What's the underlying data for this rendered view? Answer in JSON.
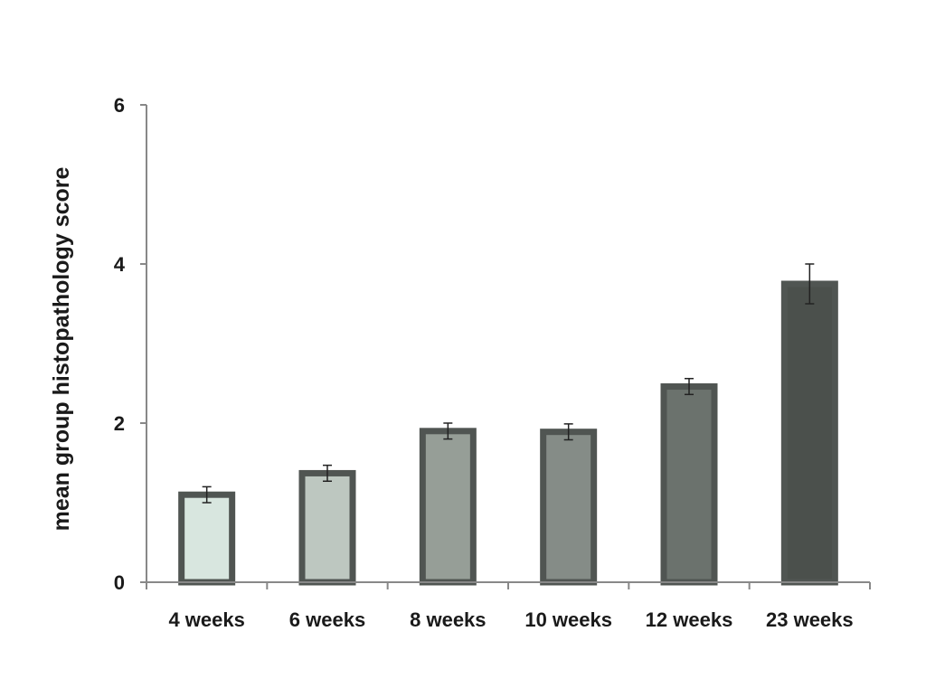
{
  "chart_data": {
    "type": "bar",
    "categories": [
      "4 weeks",
      "6 weeks",
      "8 weeks",
      "10 weeks",
      "12 weeks",
      "23 weeks"
    ],
    "values": [
      1.1,
      1.37,
      1.9,
      1.89,
      2.46,
      3.75
    ],
    "error": [
      0.1,
      0.1,
      0.1,
      0.1,
      0.1,
      0.25
    ],
    "ylabel": "mean group histopathology score",
    "xlabel": "",
    "ylim": [
      0,
      6
    ],
    "yticks": [
      0,
      2,
      4,
      6
    ],
    "grid": false,
    "legend": "none",
    "colors": {
      "fills": [
        "#d8e6df",
        "#bdc7c0",
        "#969e97",
        "#858c87",
        "#6b726d",
        "#4b504c"
      ],
      "outline": "#505552",
      "axis": "#888888",
      "text": "#1a1a1a"
    }
  }
}
